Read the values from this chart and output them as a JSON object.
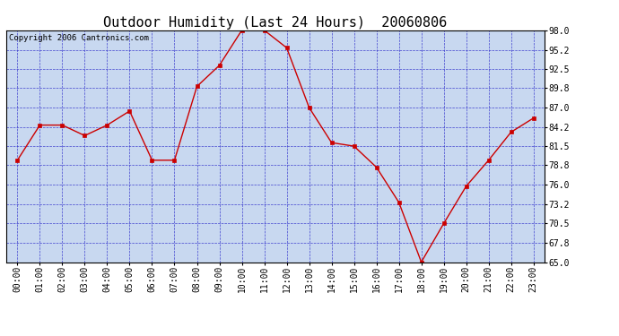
{
  "title": "Outdoor Humidity (Last 24 Hours)  20060806",
  "copyright": "Copyright 2006 Cantronics.com",
  "x_labels": [
    "00:00",
    "01:00",
    "02:00",
    "03:00",
    "04:00",
    "05:00",
    "06:00",
    "07:00",
    "08:00",
    "09:00",
    "10:00",
    "11:00",
    "12:00",
    "13:00",
    "14:00",
    "15:00",
    "16:00",
    "17:00",
    "18:00",
    "19:00",
    "20:00",
    "21:00",
    "22:00",
    "23:00"
  ],
  "y_values": [
    79.5,
    84.5,
    84.5,
    83.0,
    84.5,
    86.5,
    79.5,
    79.5,
    90.0,
    93.0,
    98.0,
    98.0,
    95.5,
    87.0,
    82.0,
    81.5,
    78.5,
    73.5,
    65.0,
    70.5,
    75.8,
    79.5,
    83.5,
    85.5
  ],
  "ylim": [
    65.0,
    98.0
  ],
  "yticks": [
    65.0,
    67.8,
    70.5,
    73.2,
    76.0,
    78.8,
    81.5,
    84.2,
    87.0,
    89.8,
    92.5,
    95.2,
    98.0
  ],
  "line_color": "#cc0000",
  "marker_color": "#cc0000",
  "plot_bg_color": "#c8d8f0",
  "grid_color": "#3333cc",
  "title_fontsize": 11,
  "tick_fontsize": 7,
  "copyright_fontsize": 6.5
}
